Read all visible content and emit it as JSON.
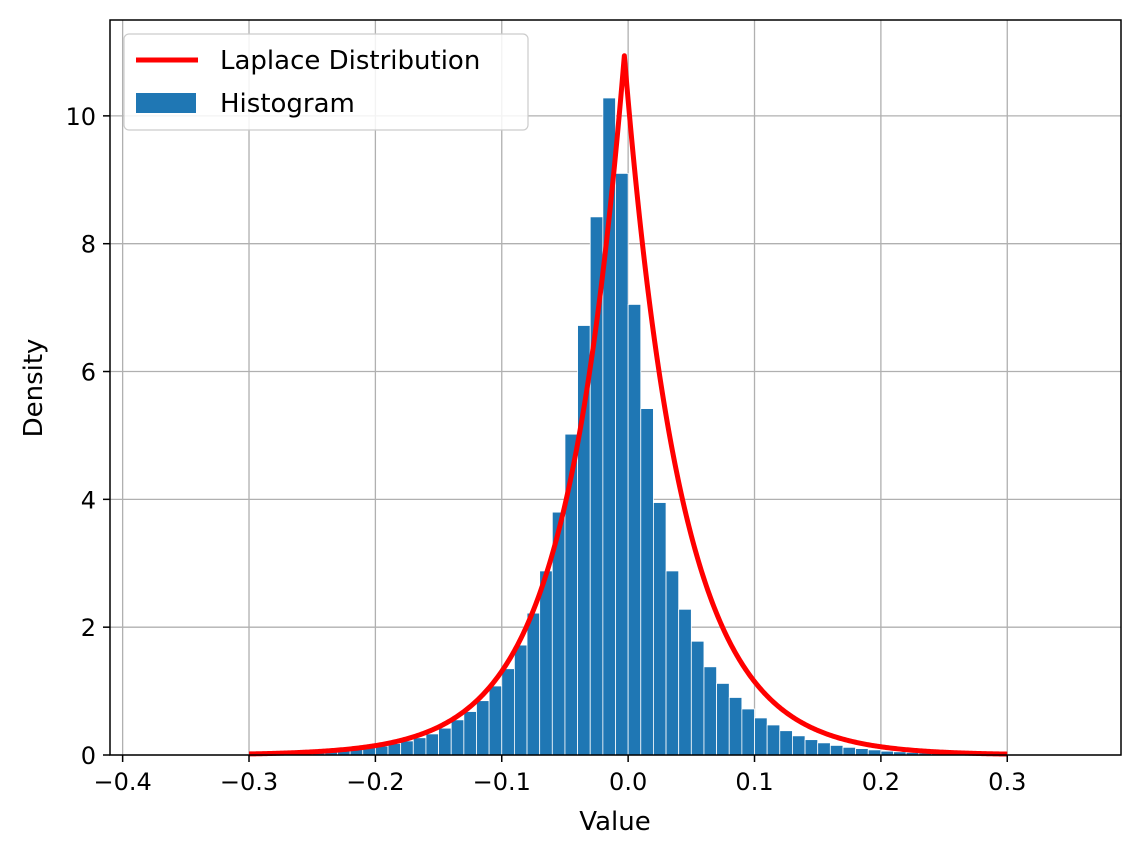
{
  "chart_data": {
    "type": "bar",
    "xlabel": "Value",
    "ylabel": "Density",
    "xlim": [
      -0.41,
      0.39
    ],
    "ylim": [
      0,
      11.5
    ],
    "x_ticks": [
      -0.4,
      -0.3,
      -0.2,
      -0.1,
      0.0,
      0.1,
      0.2,
      0.3
    ],
    "x_tick_labels": [
      "−0.4",
      "−0.3",
      "−0.2",
      "−0.1",
      "0.0",
      "0.1",
      "0.2",
      "0.3"
    ],
    "y_ticks": [
      0,
      2,
      4,
      6,
      8,
      10
    ],
    "y_tick_labels": [
      "0",
      "2",
      "4",
      "6",
      "8",
      "10"
    ],
    "grid": true,
    "legend_position": "top-left",
    "colors": {
      "histogram": "#1f77b4",
      "curve": "#ff0000",
      "grid": "#b0b0b0"
    },
    "series": [
      {
        "name": "Histogram",
        "kind": "histogram",
        "bin_edges": [
          -0.3,
          -0.29,
          -0.28,
          -0.27,
          -0.26,
          -0.25,
          -0.24,
          -0.23,
          -0.22,
          -0.21,
          -0.2,
          -0.19,
          -0.18,
          -0.17,
          -0.16,
          -0.15,
          -0.14,
          -0.13,
          -0.12,
          -0.11,
          -0.1,
          -0.09,
          -0.08,
          -0.07,
          -0.06,
          -0.05,
          -0.04,
          -0.03,
          -0.02,
          -0.01,
          0.0,
          0.01,
          0.02,
          0.03,
          0.04,
          0.05,
          0.06,
          0.07,
          0.08,
          0.09,
          0.1,
          0.11,
          0.12,
          0.13,
          0.14,
          0.15,
          0.16,
          0.17,
          0.18,
          0.19,
          0.2,
          0.21,
          0.22,
          0.23,
          0.24,
          0.25,
          0.26,
          0.27,
          0.28,
          0.29,
          0.3
        ],
        "values": [
          0.01,
          0.01,
          0.02,
          0.02,
          0.03,
          0.04,
          0.05,
          0.07,
          0.09,
          0.12,
          0.14,
          0.18,
          0.22,
          0.27,
          0.33,
          0.42,
          0.55,
          0.68,
          0.85,
          1.08,
          1.35,
          1.72,
          2.22,
          2.88,
          3.8,
          5.02,
          6.72,
          8.42,
          10.28,
          9.1,
          7.05,
          5.42,
          3.95,
          2.88,
          2.28,
          1.78,
          1.38,
          1.12,
          0.9,
          0.72,
          0.58,
          0.47,
          0.38,
          0.3,
          0.24,
          0.19,
          0.15,
          0.12,
          0.1,
          0.08,
          0.06,
          0.05,
          0.04,
          0.03,
          0.03,
          0.02,
          0.02,
          0.01,
          0.01,
          0.01
        ]
      },
      {
        "name": "Laplace Distribution",
        "kind": "line",
        "loc": -0.003,
        "scale": 0.0457,
        "x_range": [
          -0.3,
          0.3
        ]
      }
    ]
  }
}
